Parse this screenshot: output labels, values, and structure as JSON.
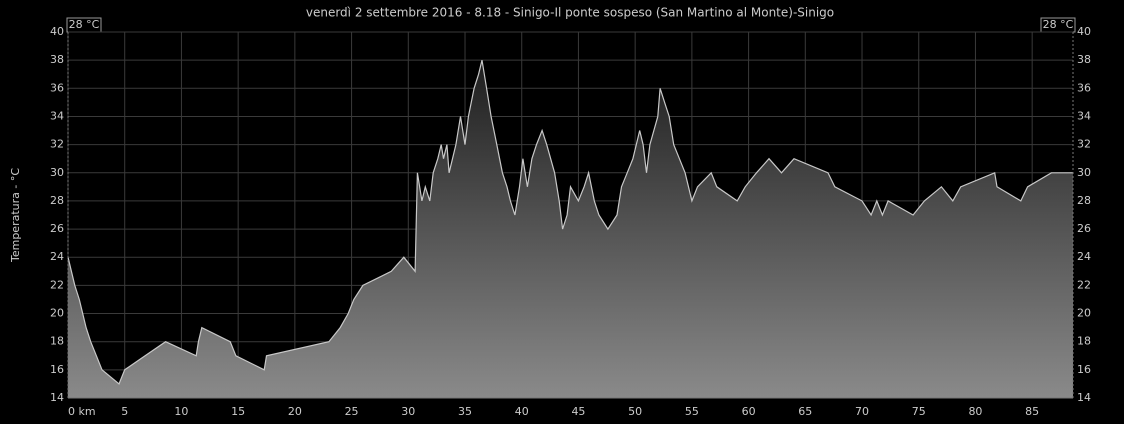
{
  "chart_data": {
    "type": "area",
    "title": "venerdì 2 settembre 2016 - 8.18 - Sinigo-Il ponte sospeso (San Martino al Monte)-Sinigo",
    "y_label": "Temperatura - °C",
    "left_label": "28 °C",
    "right_label": "28 °C",
    "color": "#c8c8c8",
    "grid": true,
    "xlim": [
      0,
      88.6
    ],
    "ylim": [
      14,
      40
    ],
    "xticks": [
      {
        "value": 0,
        "label": "0 km"
      },
      5,
      10,
      15,
      20,
      25,
      30,
      35,
      40,
      45,
      50,
      55,
      60,
      65,
      70,
      75,
      80,
      85
    ],
    "yticks": [
      14,
      16,
      18,
      20,
      22,
      24,
      26,
      28,
      30,
      32,
      34,
      36,
      38,
      40
    ],
    "x": [
      0,
      0.3,
      0.6,
      1.0,
      1.3,
      1.6,
      2.0,
      2.5,
      3.0,
      4.5,
      5.0,
      6.8,
      8.6,
      11.3,
      11.5,
      11.8,
      14.3,
      14.8,
      17.3,
      17.5,
      23.0,
      24.0,
      24.7,
      25.2,
      26.0,
      28.5,
      29.6,
      30.6,
      30.8,
      31.2,
      31.5,
      31.9,
      32.2,
      32.6,
      32.9,
      33.1,
      33.4,
      33.6,
      34.2,
      34.6,
      35.0,
      35.3,
      35.8,
      36.2,
      36.5,
      36.9,
      37.3,
      37.8,
      38.3,
      38.7,
      39.0,
      39.4,
      39.8,
      40.1,
      40.5,
      40.9,
      41.3,
      41.8,
      42.2,
      42.9,
      43.3,
      43.6,
      44.0,
      44.3,
      45.0,
      45.5,
      45.9,
      46.4,
      46.8,
      47.6,
      48.4,
      48.8,
      49.3,
      49.8,
      50.1,
      50.4,
      50.7,
      51.0,
      51.3,
      52.0,
      52.2,
      52.6,
      53.0,
      53.4,
      53.9,
      54.4,
      55.0,
      55.5,
      56.7,
      57.2,
      59.0,
      59.7,
      60.7,
      61.8,
      62.9,
      64.0,
      67.0,
      67.6,
      70.0,
      70.8,
      71.3,
      71.8,
      72.3,
      74.5,
      75.5,
      77.0,
      78.0,
      78.7,
      81.7,
      81.9,
      84.0,
      84.6,
      86.7,
      88.6
    ],
    "values": [
      24,
      23,
      22,
      21,
      20,
      19,
      18,
      17,
      16,
      15,
      16,
      17,
      18,
      17,
      18,
      19,
      18,
      17,
      16,
      17,
      18,
      19,
      20,
      21,
      22,
      23,
      24,
      23,
      30,
      28,
      29,
      28,
      30,
      31,
      32,
      31,
      32,
      30,
      32,
      34,
      32,
      34,
      36,
      37,
      38,
      36,
      34,
      32,
      30,
      29,
      28,
      27,
      29,
      31,
      29,
      31,
      32,
      33,
      32,
      30,
      28,
      26,
      27,
      29,
      28,
      29,
      30,
      28,
      27,
      26,
      27,
      29,
      30,
      31,
      32,
      33,
      32,
      30,
      32,
      34,
      36,
      35,
      34,
      32,
      31,
      30,
      28,
      29,
      30,
      29,
      28,
      29,
      30,
      31,
      30,
      31,
      30,
      29,
      28,
      27,
      28,
      27,
      28,
      27,
      28,
      29,
      28,
      29,
      30,
      29,
      28,
      29,
      30,
      30
    ]
  }
}
